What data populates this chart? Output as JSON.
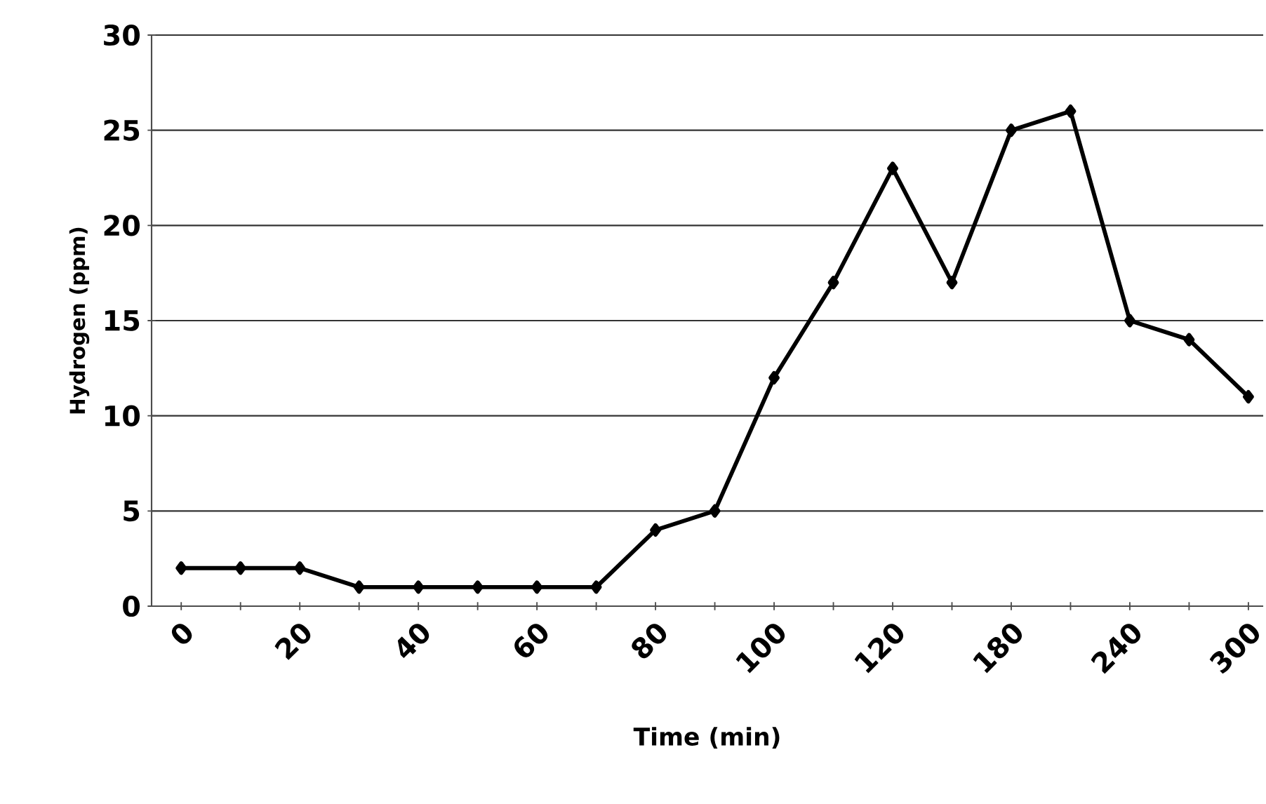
{
  "chart_data": {
    "type": "line",
    "xlabel": "Time (min)",
    "ylabel": "Hydrogen (ppm)",
    "categories": [
      "0",
      null,
      "20",
      null,
      "40",
      null,
      "60",
      null,
      "80",
      null,
      "100",
      null,
      "120",
      null,
      "180",
      null,
      "240",
      null,
      "300"
    ],
    "series": [
      {
        "color": "#000000",
        "values": [
          2,
          2,
          2,
          1,
          1,
          1,
          1,
          1,
          4,
          5,
          12,
          17,
          23,
          17,
          25,
          26,
          15,
          14,
          11
        ]
      }
    ],
    "ylim": [
      0,
      30
    ],
    "yticks": [
      0,
      5,
      10,
      15,
      20,
      25,
      30
    ],
    "grid": "y",
    "marker": "diamond",
    "line_style": "solid"
  }
}
